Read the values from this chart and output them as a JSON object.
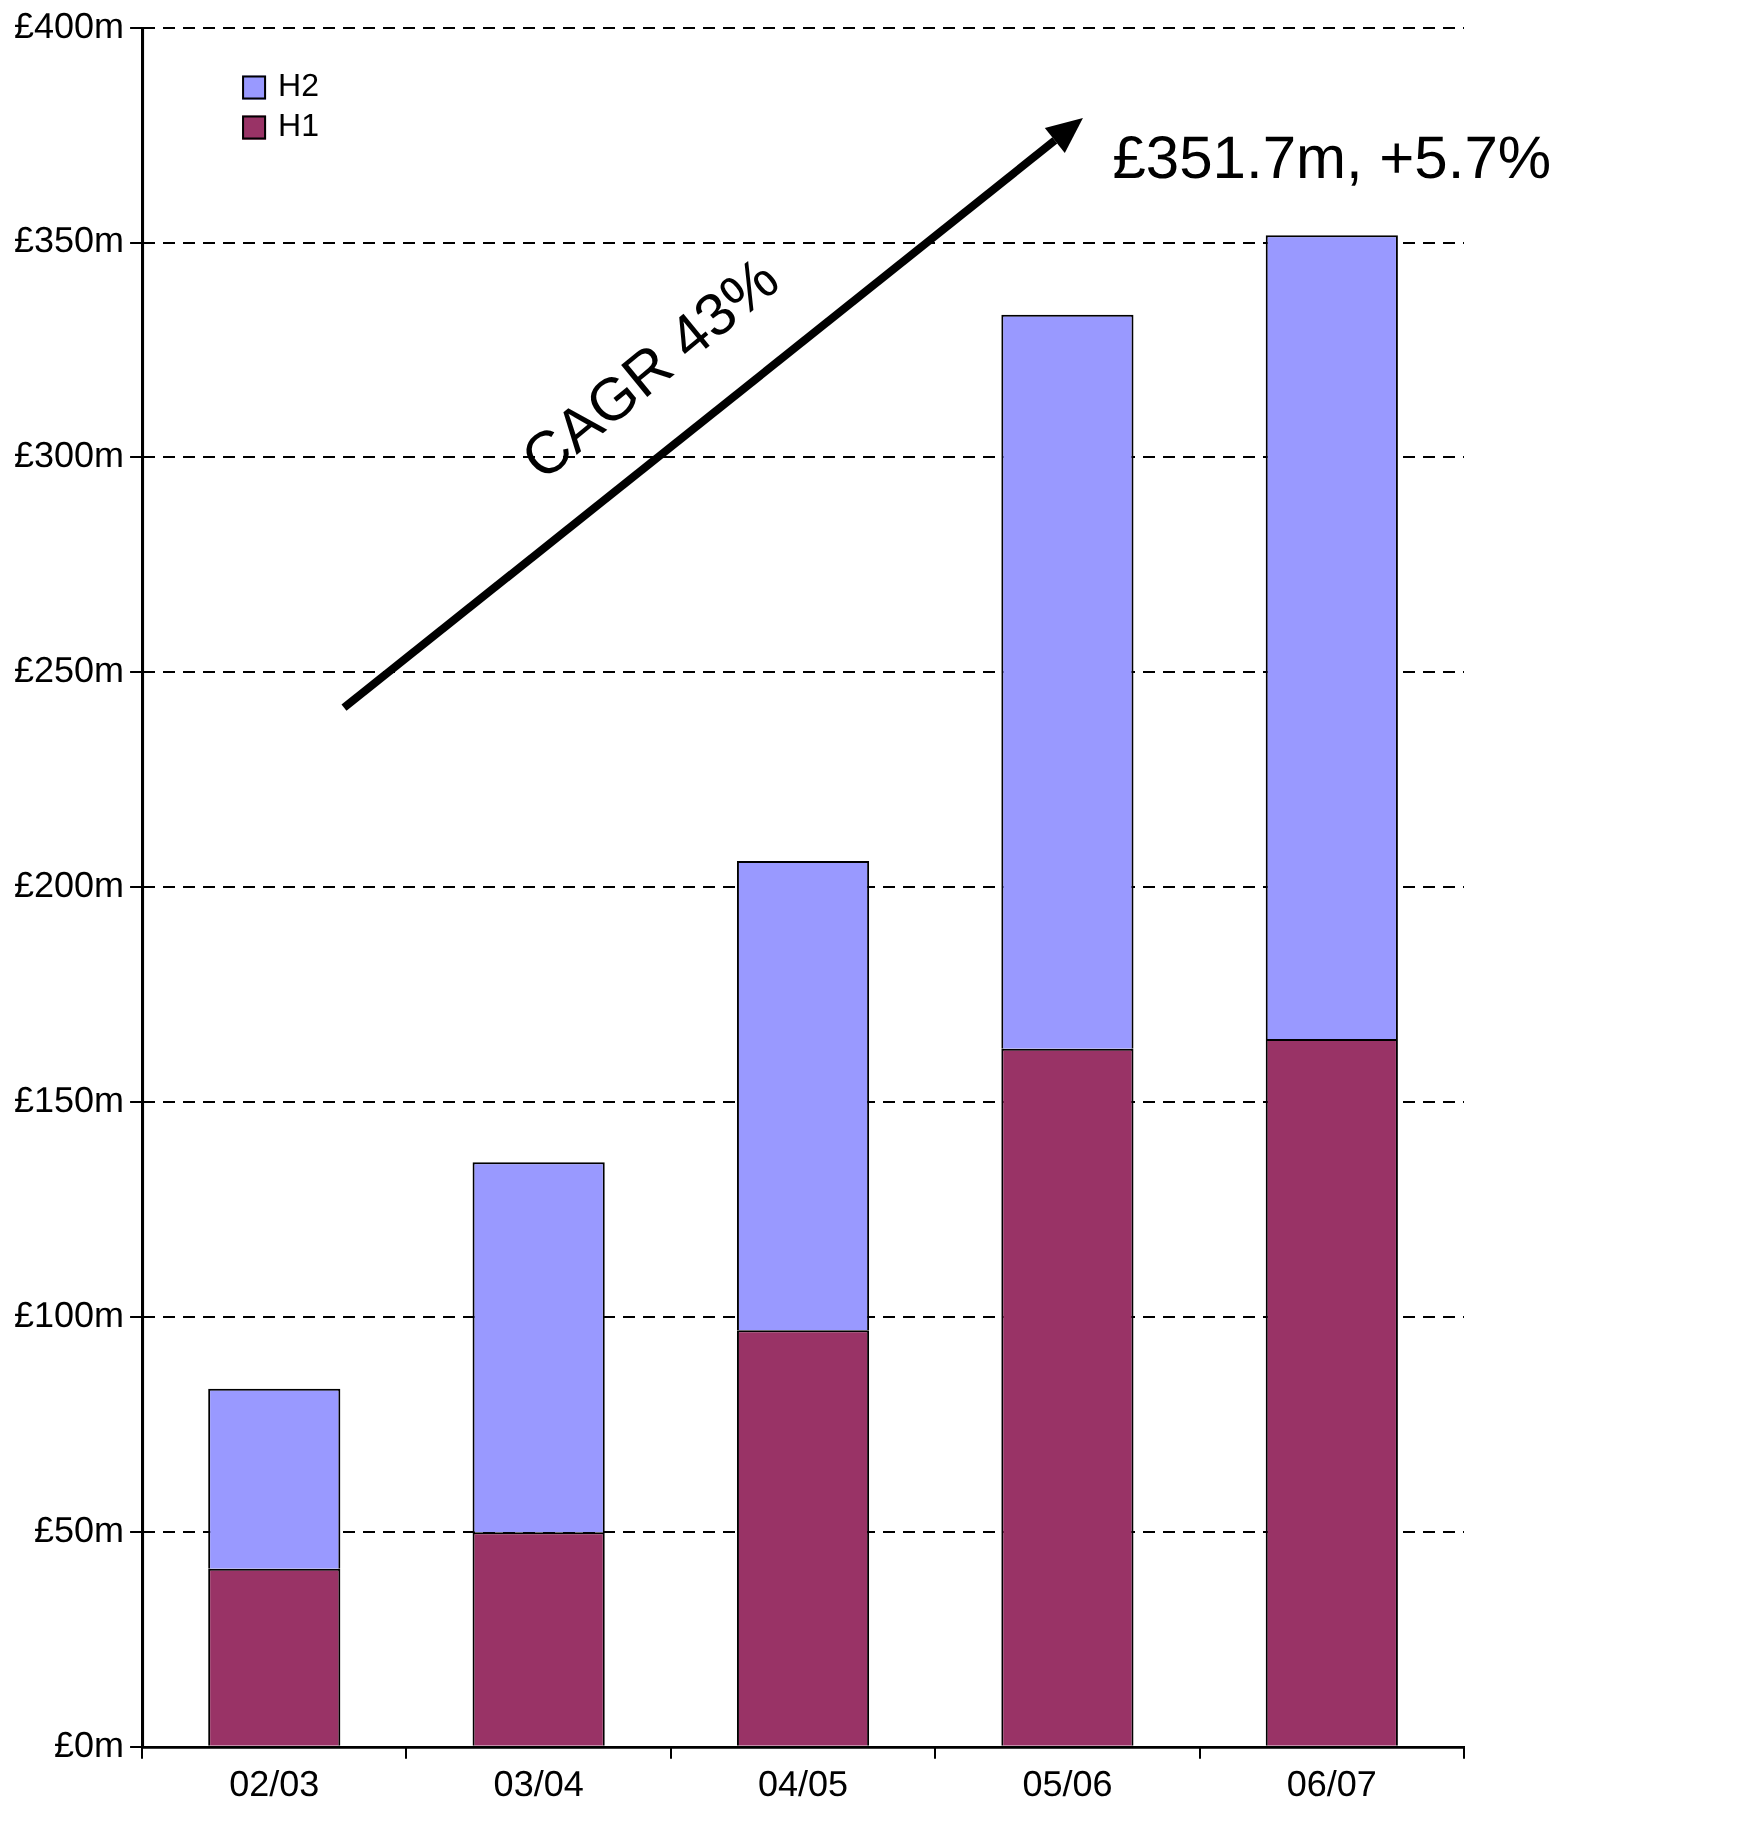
{
  "chart_data": {
    "type": "bar",
    "stacked": true,
    "categories": [
      "02/03",
      "03/04",
      "04/05",
      "05/06",
      "06/07"
    ],
    "series": [
      {
        "name": "H1",
        "color": "#993366",
        "values": [
          41.4,
          49.9,
          96.9,
          162.4,
          164.7
        ]
      },
      {
        "name": "H2",
        "color": "#9999ff",
        "values": [
          41.9,
          86.1,
          109.2,
          170.8,
          187.0
        ]
      }
    ],
    "ylim": [
      0,
      400
    ],
    "yticks": [
      {
        "value": 0,
        "label": "£0m"
      },
      {
        "value": 50,
        "label": "£50m"
      },
      {
        "value": 100,
        "label": "£100m"
      },
      {
        "value": 150,
        "label": "£150m"
      },
      {
        "value": 200,
        "label": "£200m"
      },
      {
        "value": 250,
        "label": "£250m"
      },
      {
        "value": 300,
        "label": "£300m"
      },
      {
        "value": 350,
        "label": "£350m"
      },
      {
        "value": 400,
        "label": "£400m"
      }
    ],
    "grid": "y",
    "legend": "top left",
    "annotations": [
      "CAGR 43%",
      {
        "text": "£351.7m, +5.7%",
        "x": "06/07",
        "y": 351.7
      }
    ]
  }
}
